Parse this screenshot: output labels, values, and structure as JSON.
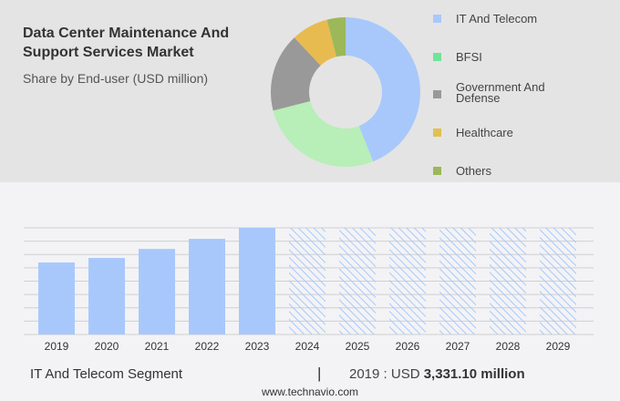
{
  "header": {
    "title": "Data Center Maintenance And Support Services Market",
    "subtitle": "Share by End-user (USD million)"
  },
  "chart_data": [
    {
      "type": "pie",
      "donut": true,
      "categories": [
        "IT And Telecom",
        "BFSI",
        "Government And Defense",
        "Healthcare",
        "Others"
      ],
      "values": [
        44,
        27,
        17,
        8,
        4
      ],
      "colors": [
        "#a8c8fc",
        "#b8eeb8",
        "#999999",
        "#e8bb50",
        "#9cb85a"
      ],
      "legend_colors": [
        "#a8c8fc",
        "#6ee49a",
        "#999999",
        "#e0c050",
        "#9cb85a"
      ],
      "legend_placement": "right"
    },
    {
      "type": "bar",
      "categories": [
        "2019",
        "2020",
        "2021",
        "2022",
        "2023",
        "2024",
        "2025",
        "2026",
        "2027",
        "2028",
        "2029"
      ],
      "values": [
        3331.1,
        3540,
        3960,
        4425,
        4935,
        null,
        null,
        null,
        null,
        null,
        null
      ],
      "forecast": [
        "2024",
        "2025",
        "2026",
        "2027",
        "2028",
        "2029"
      ],
      "color": "#a8c8fc",
      "grid": true,
      "ylim": [
        0,
        4935
      ]
    }
  ],
  "footer": {
    "segment": "IT And Telecom Segment",
    "separator": "|",
    "year_label": "2019 : USD",
    "value": "3,331.10 million",
    "url": "www.technavio.com"
  }
}
